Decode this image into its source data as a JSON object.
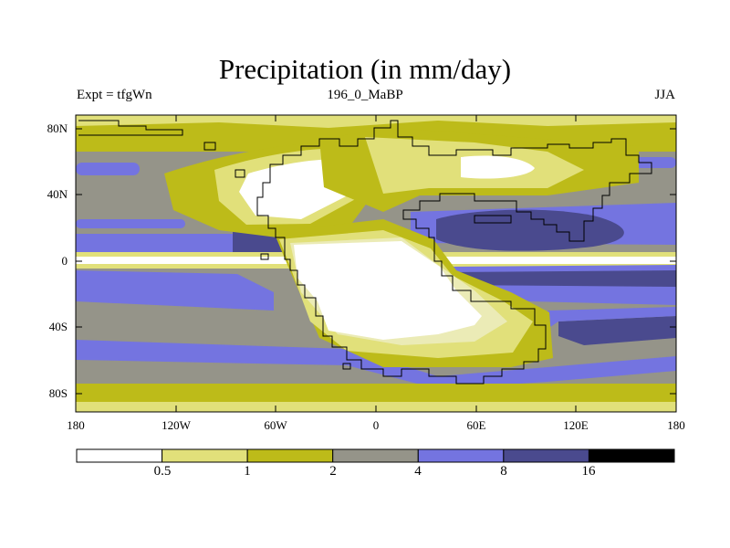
{
  "title": "Precipitation (in mm/day)",
  "subtitle_left": "Expt = tfgWn",
  "subtitle_center": "196_0_MaBP",
  "subtitle_right": "JJA",
  "latitude_labels": [
    "80N",
    "40N",
    "0",
    "40S",
    "80S"
  ],
  "longitude_labels": [
    "180",
    "120W",
    "60W",
    "0",
    "60E",
    "120E",
    "180"
  ],
  "colorbar": {
    "levels": [
      "0.5",
      "1",
      "2",
      "4",
      "8",
      "16"
    ],
    "colors": [
      "#ffffff",
      "#e1e07a",
      "#bdbb19",
      "#959489",
      "#7474e0",
      "#4a4a8e",
      "#000000"
    ]
  },
  "map_colors": {
    "dry": "#ffffff",
    "very_light": "#ebebb6",
    "light": "#e1e07a",
    "olive": "#bdbb19",
    "grey": "#959489",
    "blue": "#7474e0",
    "dark_blue": "#4a4a8e"
  }
}
